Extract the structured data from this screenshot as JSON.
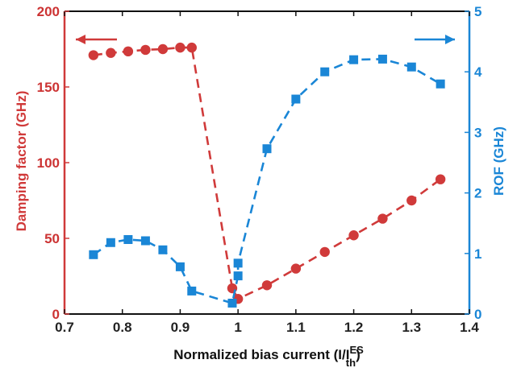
{
  "chart_data": {
    "type": "line",
    "xlabel": "Normalized bias current (I/I",
    "xlabel_sup": "ES",
    "xlabel_sub": "th",
    "xlabel_close": ")",
    "xlim": [
      0.7,
      1.4
    ],
    "xticks": [
      "0.7",
      "0.8",
      "0.9",
      "1",
      "1.1",
      "1.2",
      "1.3",
      "1.4"
    ],
    "y_left": {
      "label": "Damping factor (GHz)",
      "lim": [
        0,
        200
      ],
      "ticks": [
        "0",
        "50",
        "100",
        "150",
        "200"
      ],
      "color": "#d03a3a"
    },
    "y_right": {
      "label": "ROF (GHz)",
      "lim": [
        0,
        5
      ],
      "ticks": [
        "0",
        "1",
        "2",
        "3",
        "4",
        "5"
      ],
      "color": "#1a86d6"
    },
    "grid": false,
    "series": [
      {
        "axis": "left",
        "marker": "circle",
        "color": "#d03a3a",
        "x": [
          0.75,
          0.78,
          0.81,
          0.84,
          0.87,
          0.9,
          0.92,
          0.99,
          1.0,
          1.05,
          1.1,
          1.15,
          1.2,
          1.25,
          1.3,
          1.35
        ],
        "y": [
          171,
          172.5,
          173.5,
          174.5,
          175,
          176,
          176,
          17,
          10,
          19,
          30,
          41,
          52,
          63,
          75,
          89
        ]
      },
      {
        "axis": "right",
        "marker": "square",
        "color": "#1a86d6",
        "x": [
          0.75,
          0.78,
          0.81,
          0.84,
          0.87,
          0.9,
          0.92,
          0.99,
          1.0,
          1.0,
          1.05,
          1.1,
          1.15,
          1.2,
          1.25,
          1.3,
          1.35
        ],
        "y": [
          0.98,
          1.18,
          1.23,
          1.21,
          1.06,
          0.78,
          0.38,
          0.18,
          0.63,
          0.84,
          2.73,
          3.55,
          4.0,
          4.2,
          4.21,
          4.08,
          3.8
        ]
      }
    ],
    "annotations": [
      {
        "type": "arrow",
        "direction": "left",
        "color": "#d03a3a",
        "meaning": "left axis"
      },
      {
        "type": "arrow",
        "direction": "right",
        "color": "#1a86d6",
        "meaning": "right axis"
      }
    ]
  }
}
